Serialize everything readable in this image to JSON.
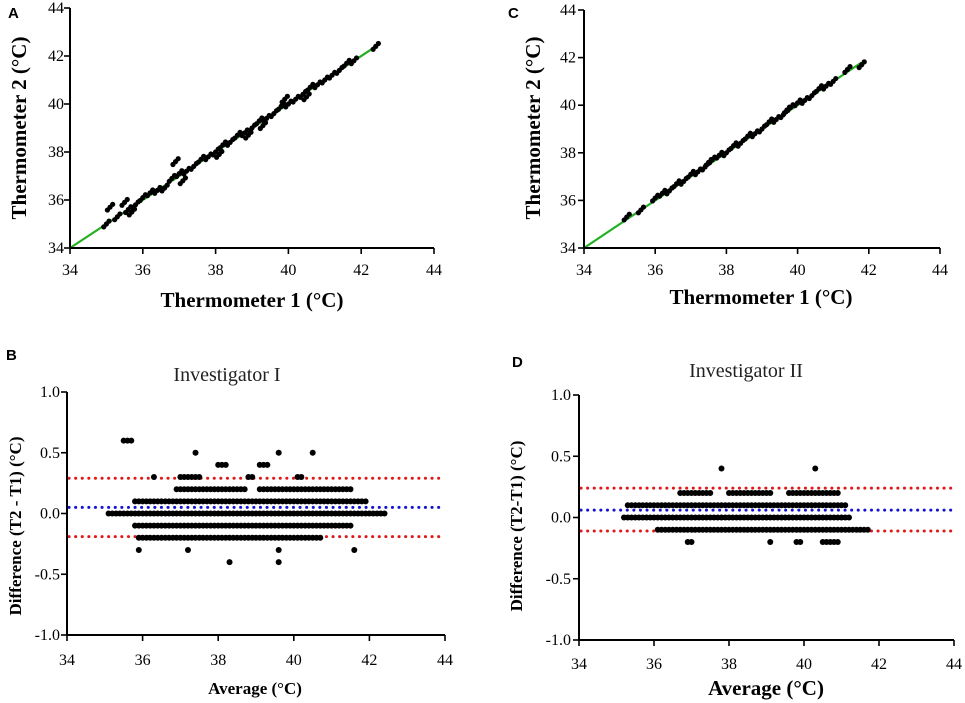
{
  "colors": {
    "points": "#000000",
    "identity_line": "#22b022",
    "mean_line": "#1414d2",
    "limit_line": "#e01818"
  },
  "chart_data": [
    {
      "panel": "A",
      "type": "scatter",
      "title": "",
      "xlabel": "Thermometer 1 (°C)",
      "ylabel": "Thermometer 2 (°C)",
      "xlim": [
        34,
        44
      ],
      "ylim": [
        34,
        44
      ],
      "xticks": [
        34,
        36,
        38,
        40,
        42,
        44
      ],
      "yticks": [
        34,
        36,
        38,
        40,
        42,
        44
      ],
      "xtick_labels": [
        "34",
        "36",
        "38",
        "40",
        "42",
        "44"
      ],
      "ytick_labels": [
        "34",
        "36",
        "38",
        "40",
        "42",
        "44"
      ],
      "reference_line": {
        "name": "identity",
        "x": [
          34,
          42.4
        ],
        "y": [
          34,
          42.4
        ],
        "color": "#22b022"
      },
      "points_x": [
        35.0,
        35.1,
        35.3,
        35.5,
        35.6,
        35.8,
        36.0,
        36.2,
        36.4,
        36.6,
        36.8,
        37.0,
        37.2,
        37.4,
        37.6,
        37.8,
        38.0,
        38.2,
        38.4,
        38.6,
        38.8,
        39.0,
        39.2,
        39.4,
        39.6,
        39.8,
        40.0,
        40.2,
        40.4,
        40.6,
        40.8,
        41.0,
        41.2,
        41.4,
        41.6,
        41.8,
        42.4,
        36.9,
        38.1,
        38.9,
        39.9,
        40.5,
        35.7,
        37.1,
        39.3
      ],
      "points_y": [
        35.0,
        35.7,
        35.3,
        35.9,
        35.6,
        35.8,
        36.1,
        36.3,
        36.4,
        36.5,
        36.9,
        37.1,
        37.2,
        37.4,
        37.7,
        37.8,
        38.0,
        38.3,
        38.4,
        38.7,
        38.8,
        39.0,
        39.3,
        39.4,
        39.6,
        39.9,
        40.0,
        40.2,
        40.4,
        40.7,
        40.8,
        41.0,
        41.2,
        41.4,
        41.7,
        41.8,
        42.4,
        37.6,
        37.9,
        38.7,
        40.2,
        40.3,
        35.5,
        36.8,
        39.1
      ]
    },
    {
      "panel": "B",
      "type": "scatter",
      "title": "Investigator I",
      "xlabel": "Average (°C)",
      "ylabel": "Difference (T2 - T1) (°C)",
      "xlim": [
        34,
        44
      ],
      "ylim": [
        -1.0,
        1.0
      ],
      "xticks": [
        34,
        36,
        38,
        40,
        42,
        44
      ],
      "yticks": [
        -1.0,
        -0.5,
        0.0,
        0.5,
        1.0
      ],
      "xtick_labels": [
        "34",
        "36",
        "38",
        "40",
        "42",
        "44"
      ],
      "ytick_labels": [
        "-1.0",
        "-0.5",
        "0.0",
        "0.5",
        "1.0"
      ],
      "reference_lines": [
        {
          "name": "mean",
          "y": 0.05,
          "color": "#1414d2"
        },
        {
          "name": "upper-limit",
          "y": 0.29,
          "color": "#e01818"
        },
        {
          "name": "lower-limit",
          "y": -0.19,
          "color": "#e01818"
        }
      ],
      "x_range_per_level": {
        "0.6": [
          [
            35.5,
            35.7
          ]
        ],
        "0.5": [
          [
            37.4,
            37.4
          ],
          [
            39.6,
            39.6
          ],
          [
            40.5,
            40.5
          ]
        ],
        "0.4": [
          [
            38.0,
            38.2
          ],
          [
            39.1,
            39.3
          ]
        ],
        "0.3": [
          [
            36.3,
            36.3
          ],
          [
            37.0,
            37.5
          ],
          [
            38.8,
            38.9
          ],
          [
            40.1,
            40.2
          ]
        ],
        "0.2": [
          [
            36.9,
            38.7
          ],
          [
            39.1,
            41.5
          ]
        ],
        "0.1": [
          [
            35.8,
            41.9
          ]
        ],
        "0.0": [
          [
            35.1,
            42.4
          ]
        ],
        "-0.1": [
          [
            35.8,
            41.5
          ]
        ],
        "-0.2": [
          [
            35.9,
            40.7
          ]
        ],
        "-0.3": [
          [
            35.9,
            35.9
          ],
          [
            37.2,
            37.2
          ],
          [
            39.6,
            39.6
          ],
          [
            41.6,
            41.6
          ]
        ],
        "-0.4": [
          [
            38.3,
            38.3
          ],
          [
            39.6,
            39.6
          ]
        ]
      },
      "x_step": 0.1
    },
    {
      "panel": "C",
      "type": "scatter",
      "title": "",
      "xlabel": "Thermometer 1 (°C)",
      "ylabel": "Thermometer 2 (°C)",
      "xlim": [
        34,
        44
      ],
      "ylim": [
        34,
        44
      ],
      "xticks": [
        34,
        36,
        38,
        40,
        42,
        44
      ],
      "yticks": [
        34,
        36,
        38,
        40,
        42,
        44
      ],
      "xtick_labels": [
        "34",
        "36",
        "38",
        "40",
        "42",
        "44"
      ],
      "ytick_labels": [
        "34",
        "36",
        "38",
        "40",
        "42",
        "44"
      ],
      "reference_line": {
        "name": "identity",
        "x": [
          34,
          41.8
        ],
        "y": [
          34,
          41.8
        ],
        "color": "#22b022"
      },
      "points_x": [
        35.2,
        35.6,
        36.0,
        36.2,
        36.4,
        36.6,
        36.8,
        37.0,
        37.2,
        37.4,
        37.6,
        37.8,
        38.0,
        38.2,
        38.4,
        38.6,
        38.8,
        39.0,
        39.2,
        39.4,
        39.6,
        39.8,
        40.0,
        40.2,
        40.4,
        40.6,
        40.8,
        41.0,
        41.4,
        41.8,
        37.5,
        39.7
      ],
      "points_y": [
        35.3,
        35.6,
        36.1,
        36.3,
        36.4,
        36.7,
        36.8,
        37.1,
        37.2,
        37.4,
        37.7,
        37.9,
        38.0,
        38.3,
        38.4,
        38.7,
        38.8,
        39.0,
        39.3,
        39.4,
        39.6,
        39.9,
        40.1,
        40.2,
        40.4,
        40.7,
        40.8,
        41.0,
        41.5,
        41.7,
        37.6,
        39.8
      ]
    },
    {
      "panel": "D",
      "type": "scatter",
      "title": "Investigator II",
      "xlabel": "Average (°C)",
      "ylabel": "Difference (T2-T1) (°C)",
      "xlim": [
        34,
        44
      ],
      "ylim": [
        -1.0,
        1.0
      ],
      "xticks": [
        34,
        36,
        38,
        40,
        42,
        44
      ],
      "yticks": [
        -1.0,
        -0.5,
        0.0,
        0.5,
        1.0
      ],
      "xtick_labels": [
        "34",
        "36",
        "38",
        "40",
        "42",
        "44"
      ],
      "ytick_labels": [
        "-1.0",
        "-0.5",
        "0.0",
        "0.5",
        "1.0"
      ],
      "reference_lines": [
        {
          "name": "mean",
          "y": 0.06,
          "color": "#1414d2"
        },
        {
          "name": "upper-limit",
          "y": 0.24,
          "color": "#e01818"
        },
        {
          "name": "lower-limit",
          "y": -0.11,
          "color": "#e01818"
        }
      ],
      "x_range_per_level": {
        "0.4": [
          [
            37.8,
            37.8
          ],
          [
            40.3,
            40.3
          ]
        ],
        "0.2": [
          [
            36.7,
            37.5
          ],
          [
            38.0,
            39.1
          ],
          [
            39.6,
            40.9
          ]
        ],
        "0.1": [
          [
            35.3,
            41.1
          ]
        ],
        "0.0": [
          [
            35.2,
            41.2
          ]
        ],
        "-0.1": [
          [
            36.1,
            41.7
          ]
        ],
        "-0.2": [
          [
            36.9,
            37.0
          ],
          [
            39.1,
            39.1
          ],
          [
            39.8,
            39.9
          ],
          [
            40.5,
            40.9
          ]
        ]
      },
      "x_step": 0.1
    }
  ]
}
